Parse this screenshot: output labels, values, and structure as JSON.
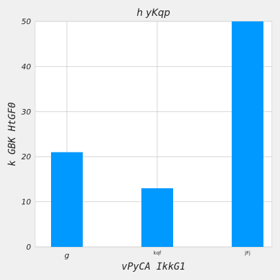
{
  "chart_data": {
    "type": "bar",
    "title": "h  yKqp",
    "xlabel": "vPyCA IkkG1",
    "ylabel": "k GBK HtGF0",
    "categories": [
      "g",
      "kqf",
      "jFj"
    ],
    "values": [
      21,
      13,
      50
    ],
    "ylim": [
      0,
      50
    ],
    "yticks": [
      0,
      10,
      20,
      30,
      40,
      50
    ],
    "grid": true,
    "bar_color": "#0099ff",
    "background_color": "#f0f0f0",
    "plot_background": "#ffffff",
    "grid_color": "#cccccc"
  }
}
